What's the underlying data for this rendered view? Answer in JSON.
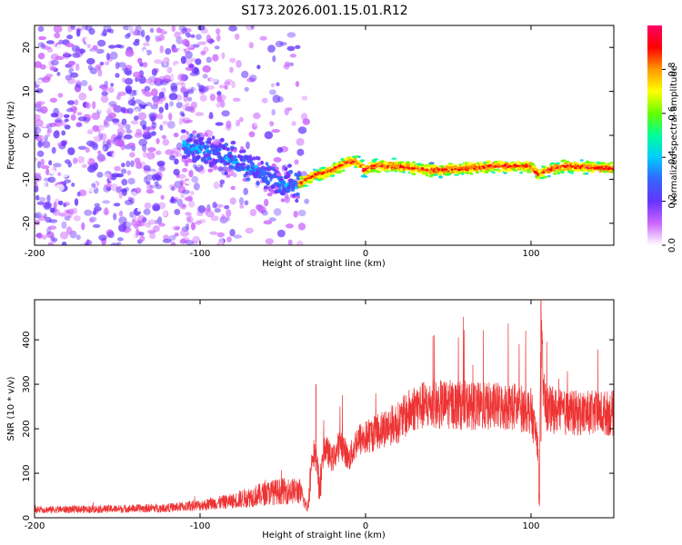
{
  "title": "S173.2026.001.15.01.R12",
  "colors": {
    "snr_line": "#ee3333",
    "colormap": [
      "#ffffff",
      "#cc66ff",
      "#6633ff",
      "#3366ff",
      "#00ccff",
      "#00ff99",
      "#66ff00",
      "#ffff00",
      "#ff9900",
      "#ff0000",
      "#ff0066"
    ]
  },
  "chart_data": [
    {
      "type": "heatmap",
      "xlabel": "Height of straight line (km)",
      "ylabel": "Frequency (Hz)",
      "xlim": [
        -200,
        150
      ],
      "ylim": [
        -25,
        25
      ],
      "x_ticks": [
        -200,
        -100,
        0,
        100
      ],
      "x_tick_labels": [
        "-200",
        "-100",
        "0",
        "100"
      ],
      "y_ticks": [
        20,
        10,
        0,
        -10,
        -20
      ],
      "y_tick_labels": [
        "20",
        "10",
        "0",
        "-10",
        "-20"
      ],
      "colorbar": {
        "label": "Normalized spectral amplitude",
        "range": [
          0,
          1
        ],
        "ticks": [
          0.0,
          0.2,
          0.4,
          0.6,
          0.8
        ],
        "tick_labels": [
          "0.0",
          "0.2",
          "0.4",
          "0.6",
          "0.8"
        ]
      },
      "ridge": {
        "x": [
          -110,
          -90,
          -70,
          -50,
          -40,
          -30,
          -20,
          -10,
          -5,
          0,
          5,
          10,
          20,
          40,
          60,
          80,
          100,
          105,
          110,
          120,
          150
        ],
        "y": [
          -2,
          -4,
          -7,
          -11,
          -11,
          -9,
          -8,
          -6,
          -6,
          -8,
          -7,
          -7,
          -7,
          -8,
          -7.5,
          -7,
          -7,
          -9,
          -8,
          -7,
          -7.5
        ]
      },
      "noise_region_x": [
        -200,
        -40
      ]
    },
    {
      "type": "line",
      "xlabel": "Height of straight line (km)",
      "ylabel": "SNR (10 * v/v)",
      "xlim": [
        -200,
        150
      ],
      "ylim": [
        0,
        490
      ],
      "x_ticks": [
        -200,
        -100,
        0,
        100
      ],
      "x_tick_labels": [
        "-200",
        "-100",
        "0",
        "100"
      ],
      "y_ticks": [
        0,
        100,
        200,
        300,
        400
      ],
      "y_tick_labels": [
        "0",
        "100",
        "200",
        "300",
        "400"
      ],
      "series": [
        {
          "x": [
            -200,
            -150,
            -120,
            -100,
            -80,
            -60,
            -50,
            -40,
            -35,
            -32,
            -30,
            -28,
            -25,
            -20,
            -15,
            -10,
            -5,
            0,
            10,
            20,
            30,
            50,
            70,
            90,
            100,
            104,
            105,
            106,
            108,
            110,
            120,
            150
          ],
          "values": [
            18,
            20,
            22,
            28,
            38,
            55,
            60,
            60,
            20,
            150,
            140,
            60,
            160,
            130,
            170,
            130,
            175,
            180,
            200,
            215,
            250,
            255,
            250,
            250,
            240,
            170,
            35,
            400,
            260,
            245,
            235,
            235
          ]
        }
      ],
      "annotations": [
        {
          "x": -30,
          "y": 300
        },
        {
          "x": 106,
          "y": 490
        }
      ]
    }
  ]
}
